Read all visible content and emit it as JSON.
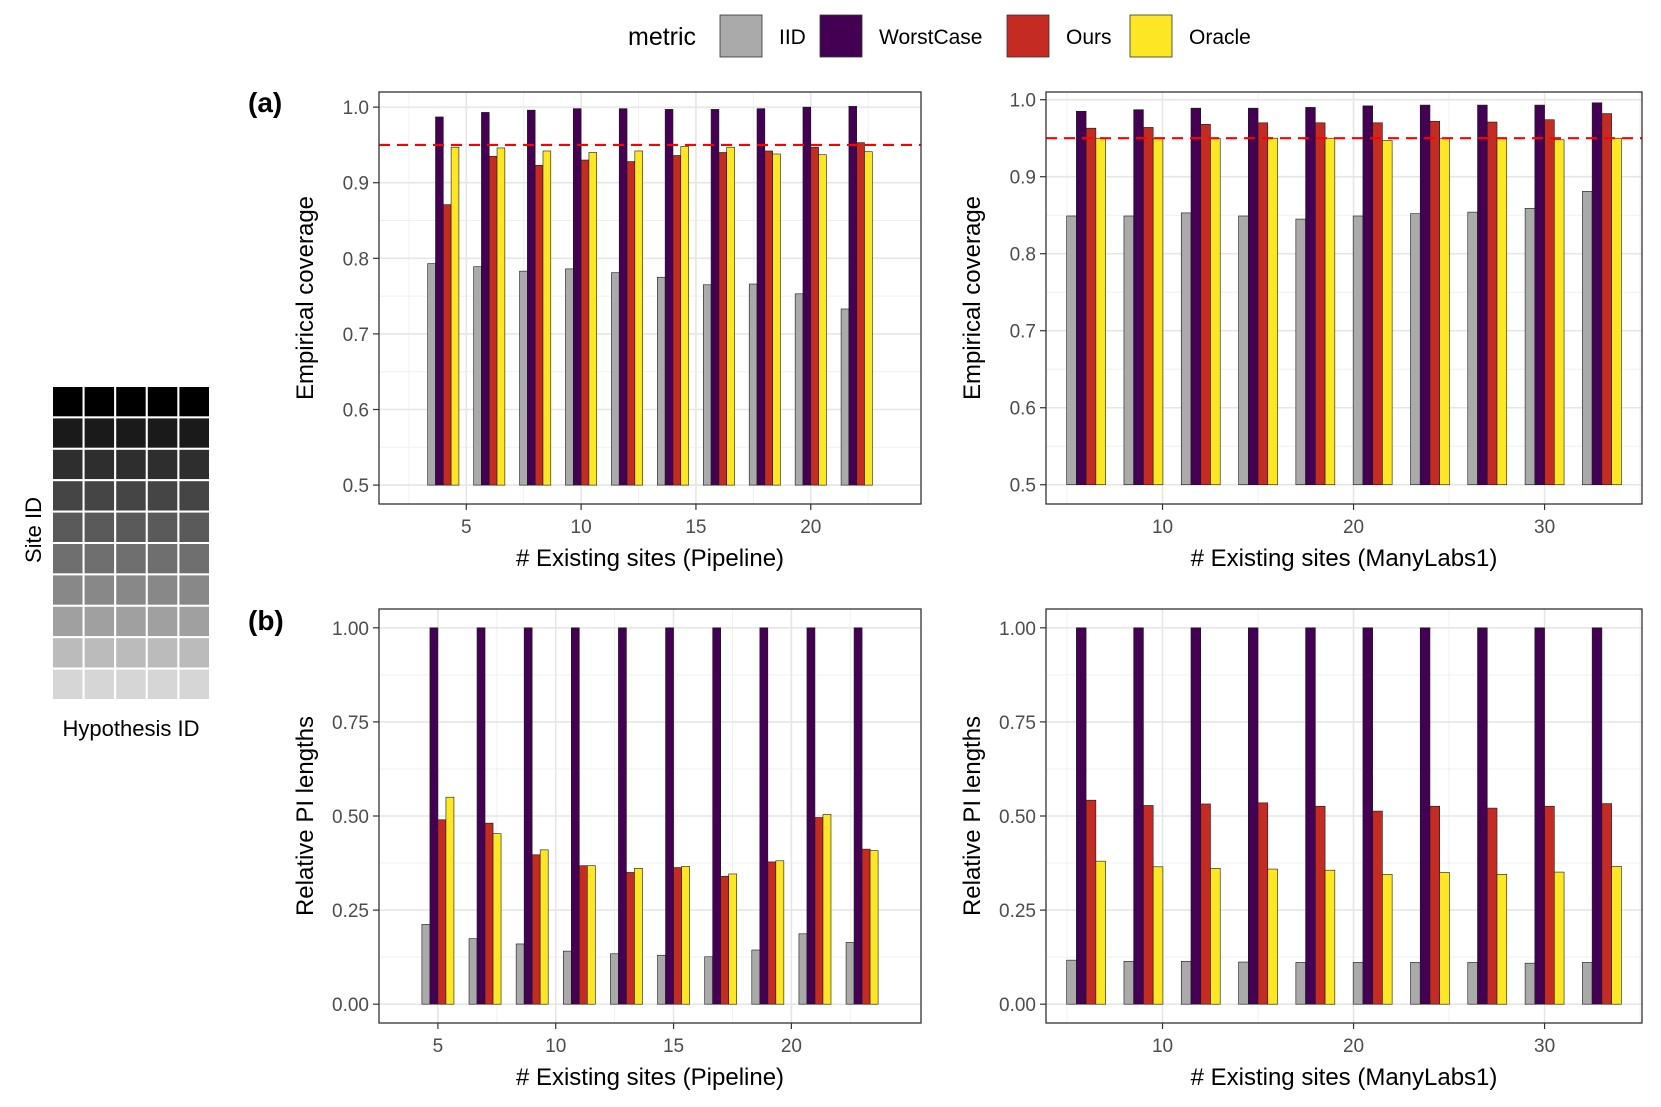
{
  "legend": {
    "title": "metric",
    "items": [
      {
        "label": "IID",
        "color": "#aaaaaa"
      },
      {
        "label": "WorstCase",
        "color": "#440154"
      },
      {
        "label": "Ours",
        "color": "#c42b22"
      },
      {
        "label": "Oracle",
        "color": "#fde725"
      }
    ]
  },
  "panel_tags": {
    "a": "(a)",
    "b": "(b)"
  },
  "heatmap": {
    "ylabel": "Site ID",
    "xlabel": "Hypothesis ID",
    "rows": 10,
    "cols": 5,
    "row_shades": [
      "#000000",
      "#1a1a1a",
      "#2e2e2e",
      "#454545",
      "#5a5a5a",
      "#6f6f6f",
      "#888888",
      "#a0a0a0",
      "#bbbbbb",
      "#d6d6d6"
    ]
  },
  "chart_data": [
    {
      "id": "a-pipeline",
      "type": "bar",
      "title": "",
      "xlabel": "# Existing sites (Pipeline)",
      "ylabel": "Empirical coverage",
      "x": [
        4,
        6,
        8,
        10,
        12,
        14,
        16,
        18,
        20,
        22
      ],
      "xlim": [
        1.2,
        24.8
      ],
      "ylim": [
        0.475,
        1.02
      ],
      "baseline": 0.5,
      "xticks": [
        5,
        10,
        15,
        20
      ],
      "yticks": [
        0.5,
        0.6,
        0.7,
        0.8,
        0.9,
        1.0
      ],
      "ytick_labels": [
        "0.5",
        "0.6",
        "0.7",
        "0.8",
        "0.9",
        "1.0"
      ],
      "reference_line": 0.95,
      "series": [
        {
          "name": "IID",
          "values": [
            0.793,
            0.789,
            0.783,
            0.786,
            0.781,
            0.775,
            0.765,
            0.766,
            0.753,
            0.733
          ]
        },
        {
          "name": "WorstCase",
          "values": [
            0.987,
            0.993,
            0.996,
            0.998,
            0.998,
            0.997,
            0.997,
            0.998,
            1.0,
            1.001
          ]
        },
        {
          "name": "Ours",
          "values": [
            0.871,
            0.935,
            0.923,
            0.93,
            0.928,
            0.936,
            0.94,
            0.942,
            0.947,
            0.953
          ]
        },
        {
          "name": "Oracle",
          "values": [
            0.947,
            0.946,
            0.942,
            0.94,
            0.942,
            0.948,
            0.947,
            0.938,
            0.937,
            0.941
          ]
        }
      ]
    },
    {
      "id": "a-manylabs1",
      "type": "bar",
      "title": "",
      "xlabel": "# Existing sites (ManyLabs1)",
      "ylabel": "Empirical coverage",
      "x": [
        6,
        9,
        12,
        15,
        18,
        21,
        24,
        27,
        30,
        33
      ],
      "xlim": [
        3.9,
        35.1
      ],
      "ylim": [
        0.475,
        1.01
      ],
      "baseline": 0.5,
      "xticks": [
        10,
        20,
        30
      ],
      "yticks": [
        0.5,
        0.6,
        0.7,
        0.8,
        0.9,
        1.0
      ],
      "ytick_labels": [
        "0.5",
        "0.6",
        "0.7",
        "0.8",
        "0.9",
        "1.0"
      ],
      "reference_line": 0.95,
      "series": [
        {
          "name": "IID",
          "values": [
            0.849,
            0.849,
            0.853,
            0.849,
            0.845,
            0.849,
            0.852,
            0.854,
            0.859,
            0.881
          ]
        },
        {
          "name": "WorstCase",
          "values": [
            0.985,
            0.987,
            0.989,
            0.989,
            0.99,
            0.992,
            0.993,
            0.993,
            0.993,
            0.996
          ]
        },
        {
          "name": "Ours",
          "values": [
            0.963,
            0.964,
            0.968,
            0.97,
            0.97,
            0.97,
            0.972,
            0.971,
            0.974,
            0.982
          ]
        },
        {
          "name": "Oracle",
          "values": [
            0.95,
            0.95,
            0.95,
            0.95,
            0.95,
            0.947,
            0.95,
            0.95,
            0.948,
            0.95
          ]
        }
      ]
    },
    {
      "id": "b-pipeline",
      "type": "bar",
      "title": "",
      "xlabel": "# Existing sites (Pipeline)",
      "ylabel": "Relative PI lengths",
      "x": [
        5,
        7,
        9,
        11,
        13,
        15,
        17,
        19,
        21,
        23
      ],
      "xlim": [
        2.5,
        25.5
      ],
      "ylim": [
        -0.05,
        1.05
      ],
      "baseline": 0,
      "xticks": [
        5,
        10,
        15,
        20
      ],
      "yticks": [
        0,
        0.25,
        0.5,
        0.75,
        1.0
      ],
      "ytick_labels": [
        "0.00",
        "0.25",
        "0.50",
        "0.75",
        "1.00"
      ],
      "series": [
        {
          "name": "IID",
          "values": [
            0.212,
            0.174,
            0.16,
            0.141,
            0.134,
            0.13,
            0.126,
            0.144,
            0.187,
            0.164
          ]
        },
        {
          "name": "WorstCase",
          "values": [
            1.0,
            1.0,
            1.0,
            1.0,
            1.0,
            1.0,
            1.0,
            1.0,
            1.0,
            1.0
          ]
        },
        {
          "name": "Ours",
          "values": [
            0.49,
            0.481,
            0.397,
            0.368,
            0.35,
            0.363,
            0.34,
            0.378,
            0.496,
            0.412
          ]
        },
        {
          "name": "Oracle",
          "values": [
            0.55,
            0.453,
            0.41,
            0.368,
            0.361,
            0.366,
            0.346,
            0.381,
            0.504,
            0.408
          ]
        }
      ]
    },
    {
      "id": "b-manylabs1",
      "type": "bar",
      "title": "",
      "xlabel": "# Existing sites (ManyLabs1)",
      "ylabel": "Relative PI lengths",
      "x": [
        6,
        9,
        12,
        15,
        18,
        21,
        24,
        27,
        30,
        33
      ],
      "xlim": [
        3.9,
        35.1
      ],
      "ylim": [
        -0.05,
        1.05
      ],
      "baseline": 0,
      "xticks": [
        10,
        20,
        30
      ],
      "yticks": [
        0,
        0.25,
        0.5,
        0.75,
        1.0
      ],
      "ytick_labels": [
        "0.00",
        "0.25",
        "0.50",
        "0.75",
        "1.00"
      ],
      "series": [
        {
          "name": "IID",
          "values": [
            0.117,
            0.114,
            0.114,
            0.112,
            0.111,
            0.111,
            0.111,
            0.111,
            0.109,
            0.111
          ]
        },
        {
          "name": "WorstCase",
          "values": [
            1.0,
            1.0,
            1.0,
            1.0,
            1.0,
            1.0,
            1.0,
            1.0,
            1.0,
            1.0
          ]
        },
        {
          "name": "Ours",
          "values": [
            0.542,
            0.528,
            0.532,
            0.535,
            0.526,
            0.513,
            0.526,
            0.521,
            0.526,
            0.533
          ]
        },
        {
          "name": "Oracle",
          "values": [
            0.38,
            0.365,
            0.361,
            0.359,
            0.356,
            0.345,
            0.35,
            0.345,
            0.351,
            0.366
          ]
        }
      ]
    }
  ]
}
